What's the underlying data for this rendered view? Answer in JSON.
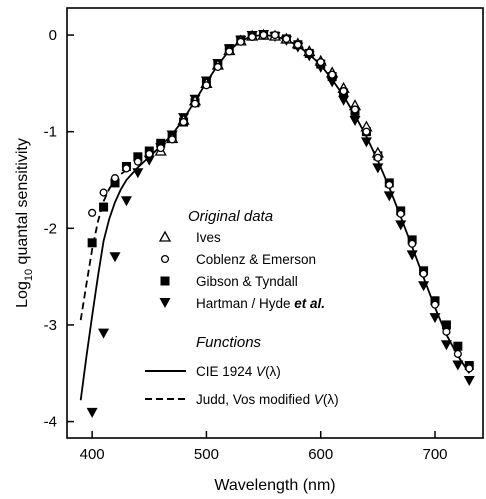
{
  "chart_data": {
    "type": "scatter",
    "xlabel": "Wavelength (nm)",
    "ylabel_main": "Log",
    "ylabel_sub": "10",
    "ylabel_rest": " quantal sensitivity",
    "xlim": [
      378,
      742
    ],
    "ylim": [
      -4.17,
      0.28
    ],
    "xticks": [
      400,
      500,
      600,
      700
    ],
    "yticks": [
      0,
      -1,
      -2,
      -3,
      -4
    ],
    "grid": false,
    "legend_placement": "center-left",
    "legend": {
      "data_header": "Original data",
      "functions_header": "Functions",
      "items": [
        {
          "label": "Ives",
          "marker": "open-triangle-up"
        },
        {
          "label": "Coblenz & Emerson",
          "marker": "open-circle"
        },
        {
          "label": "Gibson & Tyndall",
          "marker": "filled-square"
        },
        {
          "label_parts": [
            "Hartman / Hyde ",
            "et al."
          ],
          "marker": "filled-triangle-down"
        }
      ],
      "functions": [
        {
          "label_parts": [
            "CIE 1924 ",
            "V",
            "(λ)"
          ],
          "style": "solid"
        },
        {
          "label_parts": [
            "Judd, Vos modified ",
            "V",
            "(λ)"
          ],
          "style": "dashed"
        }
      ]
    },
    "series": [
      {
        "name": "Ives",
        "marker": "open-triangle-up",
        "x": [
          460,
          470,
          480,
          490,
          500,
          510,
          520,
          530,
          540,
          550,
          560,
          570,
          580,
          590,
          600,
          610,
          620,
          630,
          640,
          650
        ],
        "y": [
          -1.2,
          -1.07,
          -0.88,
          -0.68,
          -0.5,
          -0.31,
          -0.16,
          -0.06,
          -0.01,
          0.0,
          -0.01,
          -0.04,
          -0.09,
          -0.17,
          -0.27,
          -0.39,
          -0.55,
          -0.73,
          -0.95,
          -1.22
        ]
      },
      {
        "name": "Coblenz & Emerson",
        "marker": "open-circle",
        "x": [
          400,
          410,
          420,
          430,
          440,
          450,
          460,
          470,
          480,
          490,
          500,
          510,
          520,
          530,
          540,
          550,
          560,
          570,
          580,
          590,
          600,
          610,
          620,
          630,
          640,
          650,
          660,
          670,
          680,
          690,
          700,
          710,
          720,
          730
        ],
        "y": [
          -1.84,
          -1.63,
          -1.48,
          -1.38,
          -1.31,
          -1.23,
          -1.17,
          -1.08,
          -0.9,
          -0.71,
          -0.52,
          -0.33,
          -0.17,
          -0.07,
          -0.02,
          0.0,
          0.0,
          -0.04,
          -0.1,
          -0.18,
          -0.28,
          -0.41,
          -0.58,
          -0.77,
          -1.0,
          -1.27,
          -1.55,
          -1.85,
          -2.16,
          -2.47,
          -2.79,
          -3.07,
          -3.3,
          -3.45
        ]
      },
      {
        "name": "Gibson & Tyndall",
        "marker": "filled-square",
        "x": [
          400,
          410,
          420,
          430,
          440,
          450,
          460,
          470,
          480,
          490,
          500,
          510,
          520,
          530,
          540,
          550,
          560,
          570,
          580,
          590,
          600,
          610,
          620,
          630,
          640,
          650,
          660,
          670,
          680,
          690,
          700,
          710,
          720,
          730
        ],
        "y": [
          -2.15,
          -1.78,
          -1.53,
          -1.36,
          -1.26,
          -1.2,
          -1.12,
          -1.05,
          -0.9,
          -0.7,
          -0.48,
          -0.3,
          -0.14,
          -0.05,
          -0.01,
          0.0,
          -0.01,
          -0.04,
          -0.1,
          -0.19,
          -0.3,
          -0.43,
          -0.6,
          -0.79,
          -1.0,
          -1.25,
          -1.53,
          -1.82,
          -2.12,
          -2.44,
          -2.75,
          -3.0,
          -3.22,
          -3.42
        ]
      },
      {
        "name": "Hartman / Hyde et al.",
        "marker": "filled-triangle-down",
        "x": [
          400,
          410,
          420,
          430,
          440,
          450,
          460,
          470,
          480,
          490,
          500,
          510,
          520,
          530,
          540,
          550,
          560,
          570,
          580,
          590,
          600,
          610,
          620,
          630,
          640,
          650,
          660,
          670,
          680,
          690,
          700,
          710,
          720,
          730
        ],
        "y": [
          -3.91,
          -3.09,
          -2.3,
          -1.72,
          -1.43,
          -1.3,
          -1.17,
          -1.04,
          -0.86,
          -0.67,
          -0.48,
          -0.3,
          -0.15,
          -0.06,
          -0.01,
          0.0,
          -0.02,
          -0.06,
          -0.13,
          -0.22,
          -0.34,
          -0.49,
          -0.68,
          -0.89,
          -1.11,
          -1.38,
          -1.67,
          -1.97,
          -2.28,
          -2.6,
          -2.93,
          -3.21,
          -3.42,
          -3.58
        ]
      }
    ],
    "curves": [
      {
        "name": "CIE 1924 V(λ)",
        "style": "solid",
        "x": [
          390,
          395,
          400,
          405,
          410,
          415,
          420,
          425,
          430,
          440,
          450,
          460,
          470,
          480,
          490,
          500,
          510,
          520,
          530,
          540,
          550,
          560,
          570,
          580,
          590,
          600,
          610,
          620,
          630,
          640,
          650,
          660,
          670,
          680,
          690,
          700,
          710,
          720,
          730
        ],
        "y": [
          -3.78,
          -3.33,
          -2.91,
          -2.5,
          -2.13,
          -1.9,
          -1.73,
          -1.6,
          -1.5,
          -1.37,
          -1.26,
          -1.15,
          -1.03,
          -0.87,
          -0.68,
          -0.49,
          -0.31,
          -0.16,
          -0.06,
          -0.01,
          0.0,
          -0.01,
          -0.05,
          -0.11,
          -0.2,
          -0.31,
          -0.46,
          -0.63,
          -0.83,
          -1.05,
          -1.3,
          -1.58,
          -1.88,
          -2.19,
          -2.51,
          -2.82,
          -3.1,
          -3.32,
          -3.5
        ]
      },
      {
        "name": "Judd, Vos modified V(λ)",
        "style": "dashed",
        "x": [
          390,
          395,
          400,
          405,
          410,
          415,
          420,
          425,
          430
        ],
        "y": [
          -2.95,
          -2.58,
          -2.22,
          -1.93,
          -1.72,
          -1.59,
          -1.5,
          -1.44,
          -1.4
        ]
      }
    ]
  }
}
